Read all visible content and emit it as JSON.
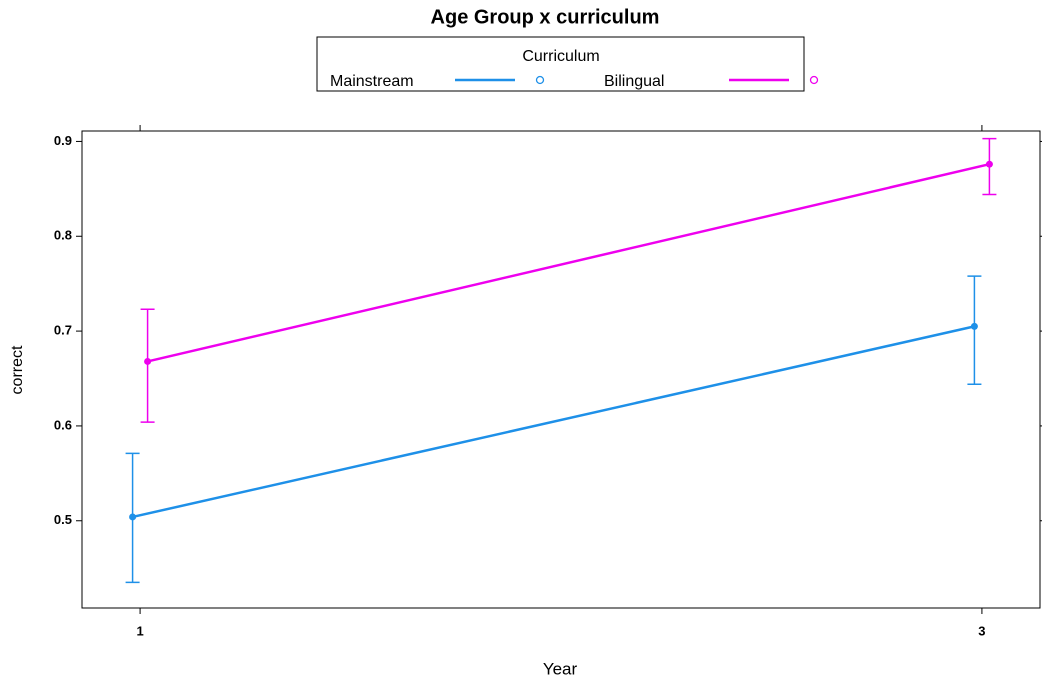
{
  "chart_data": {
    "type": "line",
    "title": "Age Group x curriculum",
    "legend_title": "Curriculum",
    "x_label": "Year",
    "y_label": "correct",
    "x": [
      1,
      3
    ],
    "xlim": [
      0.862,
      3.138
    ],
    "xticks": [
      1,
      3
    ],
    "ylim": [
      0.408,
      0.911
    ],
    "yticks": [
      0.5,
      0.6,
      0.7,
      0.8,
      0.9
    ],
    "series": [
      {
        "name": "Mainstream",
        "color": "#1e90e8",
        "values": [
          0.504,
          0.705
        ],
        "lower": [
          0.435,
          0.644
        ],
        "upper": [
          0.571,
          0.758
        ]
      },
      {
        "name": "Bilingual",
        "color": "#ee00ee",
        "values": [
          0.668,
          0.876
        ],
        "lower": [
          0.604,
          0.844
        ],
        "upper": [
          0.723,
          0.903
        ]
      }
    ]
  }
}
